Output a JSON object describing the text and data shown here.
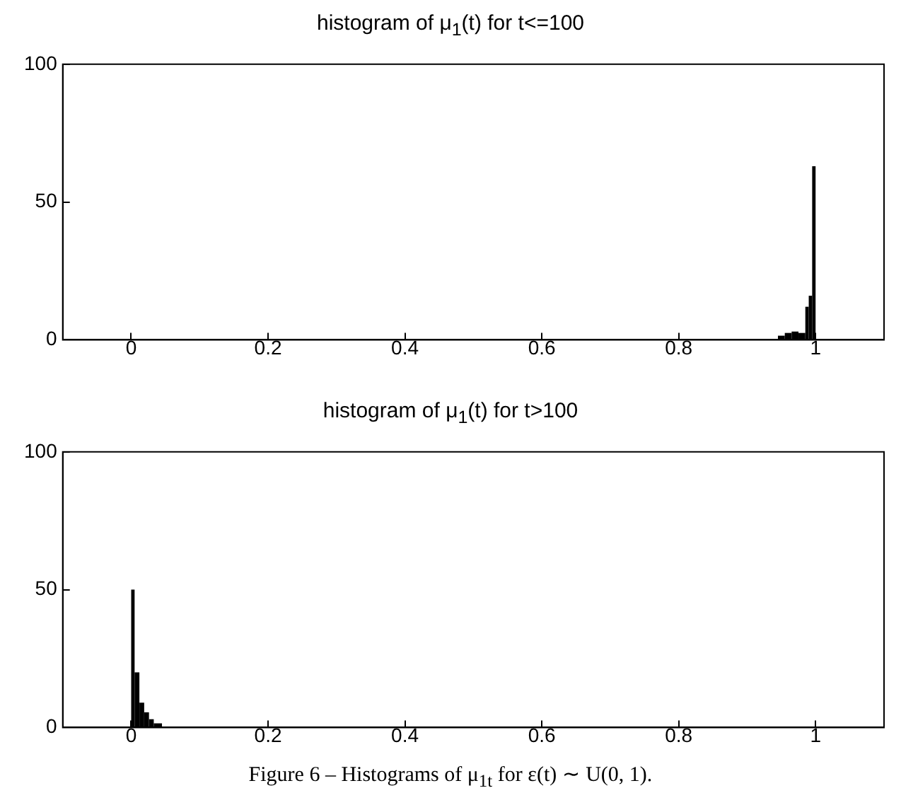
{
  "chart_data": [
    {
      "type": "histogram",
      "title": "histogram of μ$_{1}$(t) for t<=100",
      "bins": [
        0.945,
        0.955,
        0.965,
        0.975,
        0.985,
        0.99,
        0.995,
        1.0
      ],
      "values": [
        1.5,
        2.5,
        3,
        2.5,
        12,
        16,
        63
      ],
      "color": "#000000",
      "xlim": [
        -0.1,
        1.1
      ],
      "xticks": [
        0,
        0.2,
        0.4,
        0.6,
        0.8,
        1
      ],
      "ylim": [
        0,
        100
      ],
      "yticks": [
        0,
        50,
        100
      ],
      "grid": false
    },
    {
      "type": "histogram",
      "title": "histogram of μ$_{1}$(t) for t>100",
      "bins": [
        0,
        0.005,
        0.012,
        0.019,
        0.026,
        0.033,
        0.045
      ],
      "values": [
        50,
        20,
        9,
        5.5,
        3,
        1.5
      ],
      "color": "#000000",
      "xlim": [
        -0.1,
        1.1
      ],
      "xticks": [
        0,
        0.2,
        0.4,
        0.6,
        0.8,
        1
      ],
      "ylim": [
        0,
        100
      ],
      "yticks": [
        0,
        50,
        100
      ],
      "grid": false,
      "annotations": [
        "Figure 6 – Histograms of μ$_{1t}$ for ε(t) ∼ U(0, 1)."
      ]
    }
  ]
}
